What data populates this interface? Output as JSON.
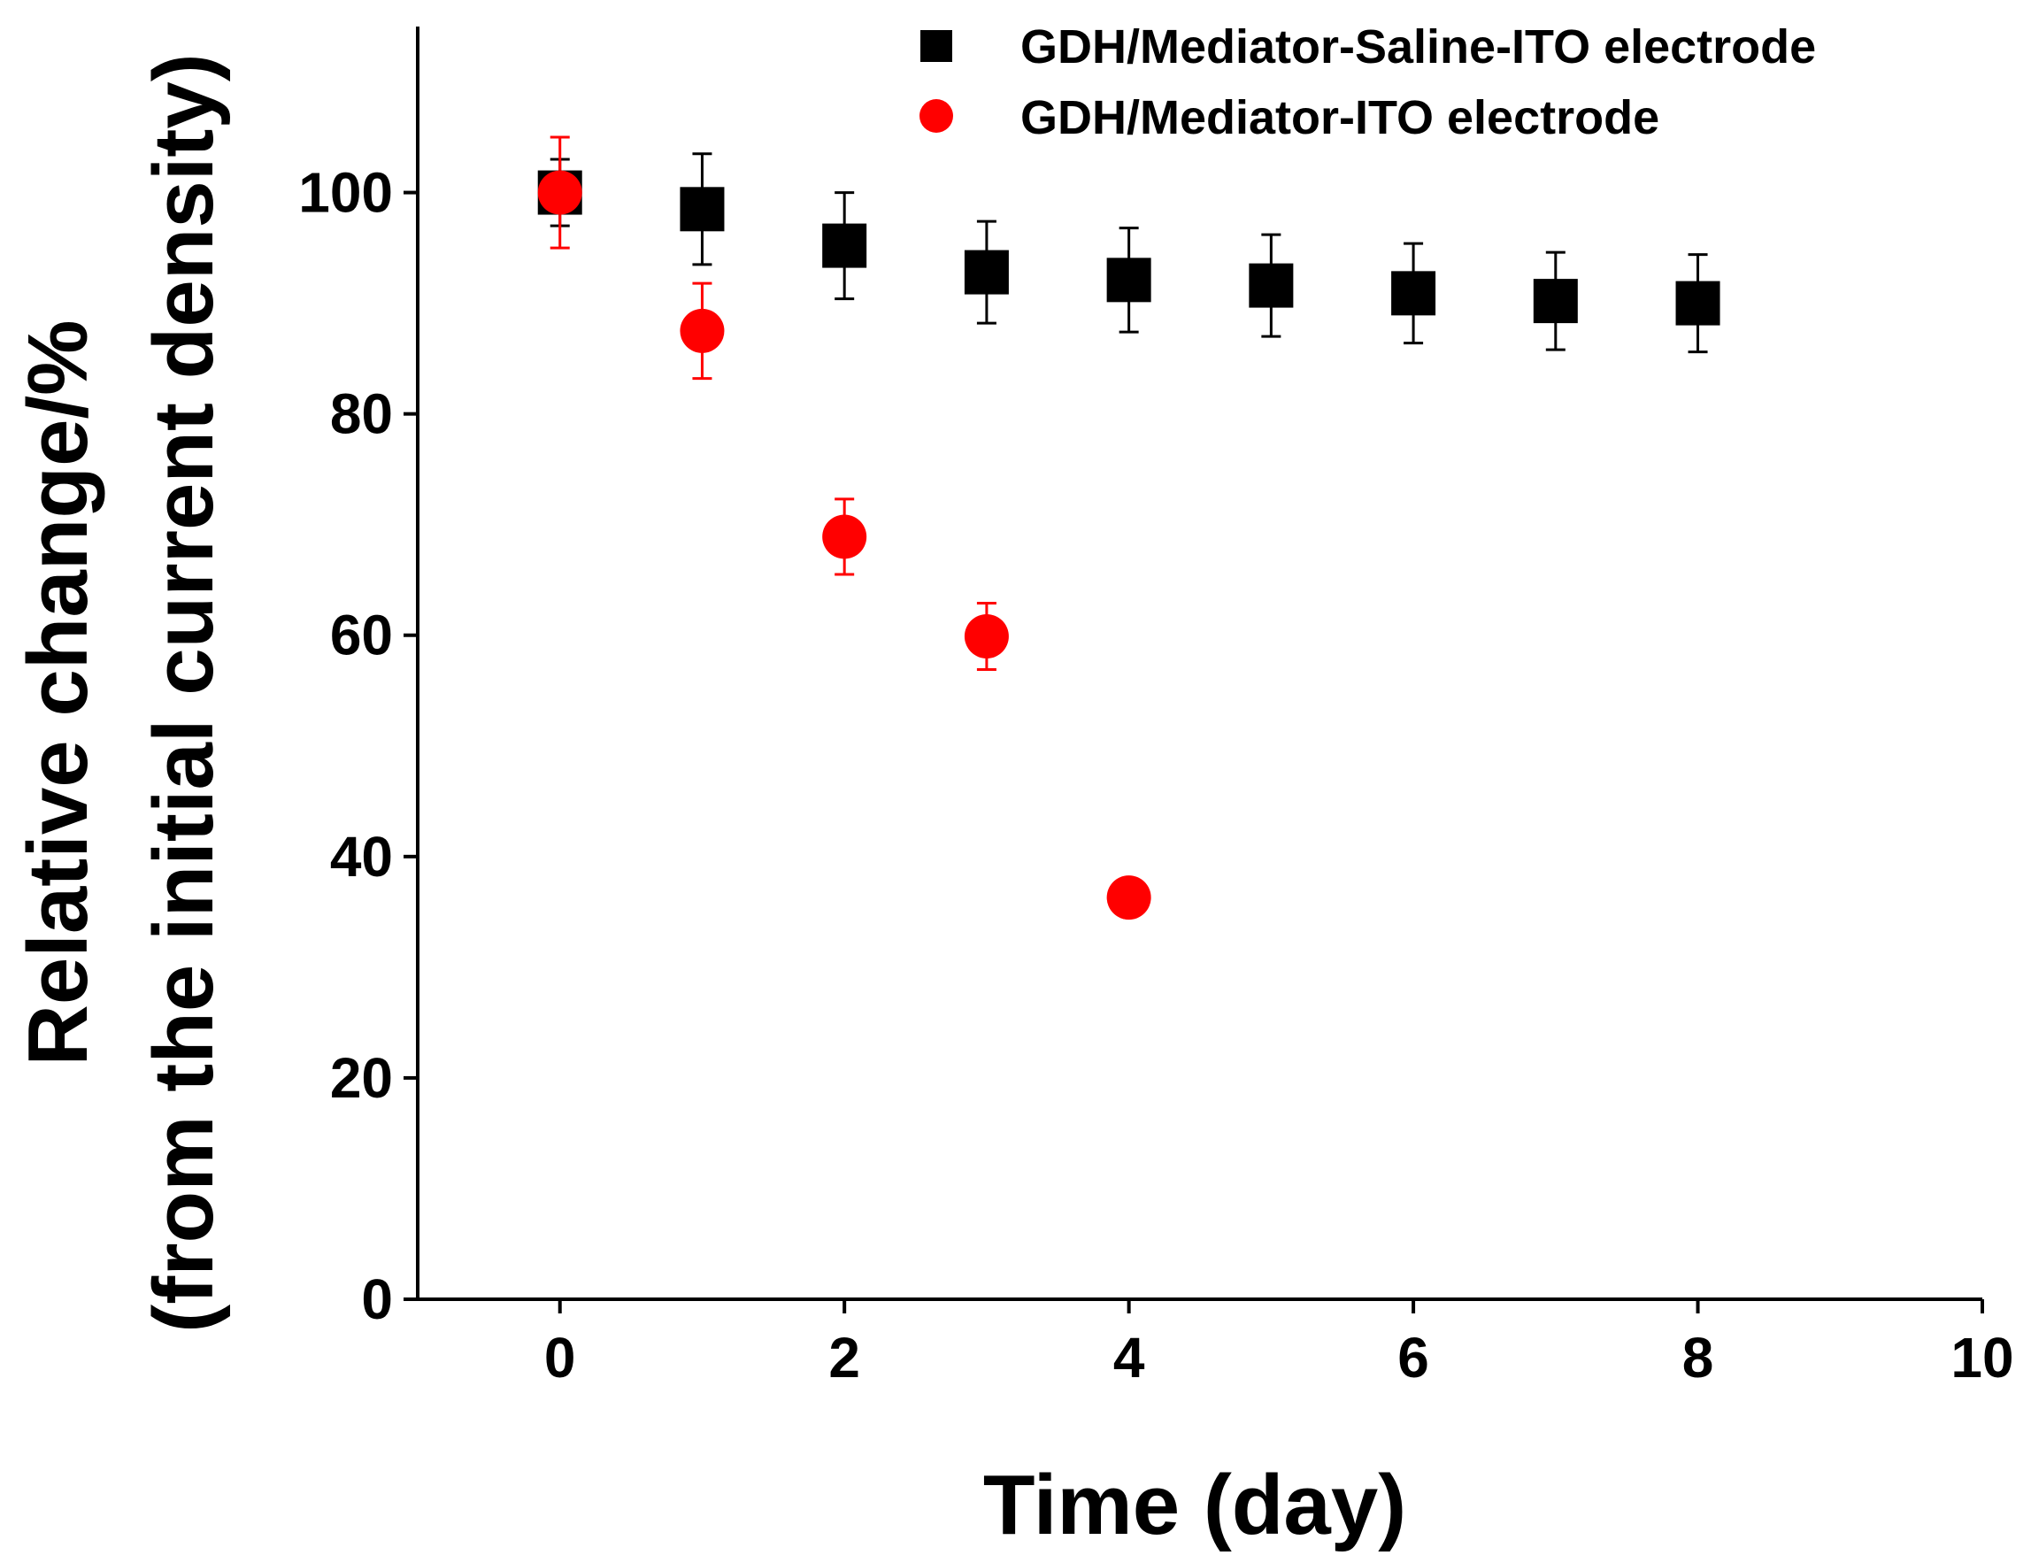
{
  "chart_data": {
    "type": "scatter",
    "title": "",
    "xlabel": "Time (day)",
    "ylabel_lines": [
      "Relative change/%",
      "(from the initial current density)"
    ],
    "xlim": [
      -1,
      10
    ],
    "ylim": [
      0,
      115
    ],
    "xticks": [
      0,
      2,
      4,
      6,
      8,
      10
    ],
    "yticks": [
      0,
      20,
      40,
      60,
      80,
      100
    ],
    "grid": false,
    "legend_position": "top-right",
    "series": [
      {
        "name": "GDH/Mediator-Saline-ITO electrode",
        "marker": "square",
        "color": "#000000",
        "x": [
          0,
          1,
          2,
          3,
          4,
          5,
          6,
          7,
          8
        ],
        "y": [
          100,
          98.5,
          95.2,
          92.8,
          92.1,
          91.6,
          90.9,
          90.2,
          90.0
        ],
        "err": [
          3,
          5,
          4.8,
          4.6,
          4.7,
          4.6,
          4.5,
          4.4,
          4.4
        ]
      },
      {
        "name": "GDH/Mediator-ITO electrode",
        "marker": "circle",
        "color": "#ff0000",
        "x": [
          0,
          1,
          2,
          3,
          4
        ],
        "y": [
          100,
          87.5,
          68.9,
          59.9,
          36.3
        ],
        "err": [
          5,
          4.3,
          3.4,
          3.0,
          0
        ]
      }
    ]
  }
}
